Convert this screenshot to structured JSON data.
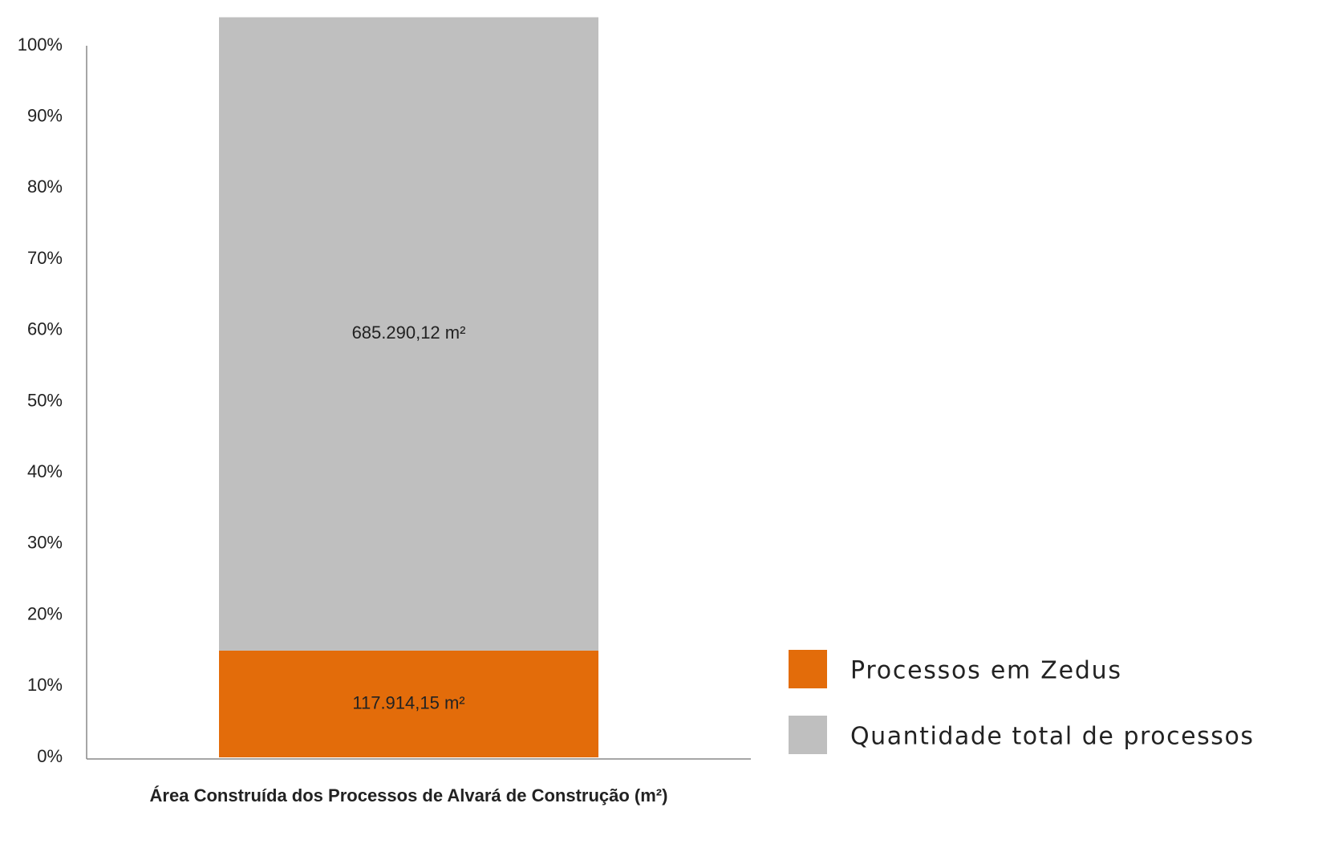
{
  "chart_data": {
    "type": "stacked_bar",
    "categories": [
      "Área Construída dos Processos de Alvará de Construção (m²)"
    ],
    "series": [
      {
        "name": "Processos em Zedus",
        "color": "#e36c0a",
        "values": [
          15
        ],
        "annotations": [
          "117.914,15 m²"
        ]
      },
      {
        "name": "Quantidade total de processos",
        "color": "#bfbfbf",
        "values": [
          89
        ],
        "annotations": [
          "685.290,12 m²"
        ]
      }
    ],
    "ylim": [
      0,
      100
    ],
    "yticks": [
      {
        "value": 0,
        "label": "0%"
      },
      {
        "value": 10,
        "label": "10%"
      },
      {
        "value": 20,
        "label": "20%"
      },
      {
        "value": 30,
        "label": "30%"
      },
      {
        "value": 40,
        "label": "40%"
      },
      {
        "value": 50,
        "label": "50%"
      },
      {
        "value": 60,
        "label": "60%"
      },
      {
        "value": 70,
        "label": "70%"
      },
      {
        "value": 80,
        "label": "80%"
      },
      {
        "value": 90,
        "label": "90%"
      },
      {
        "value": 100,
        "label": "100%"
      }
    ],
    "legend": "right"
  }
}
